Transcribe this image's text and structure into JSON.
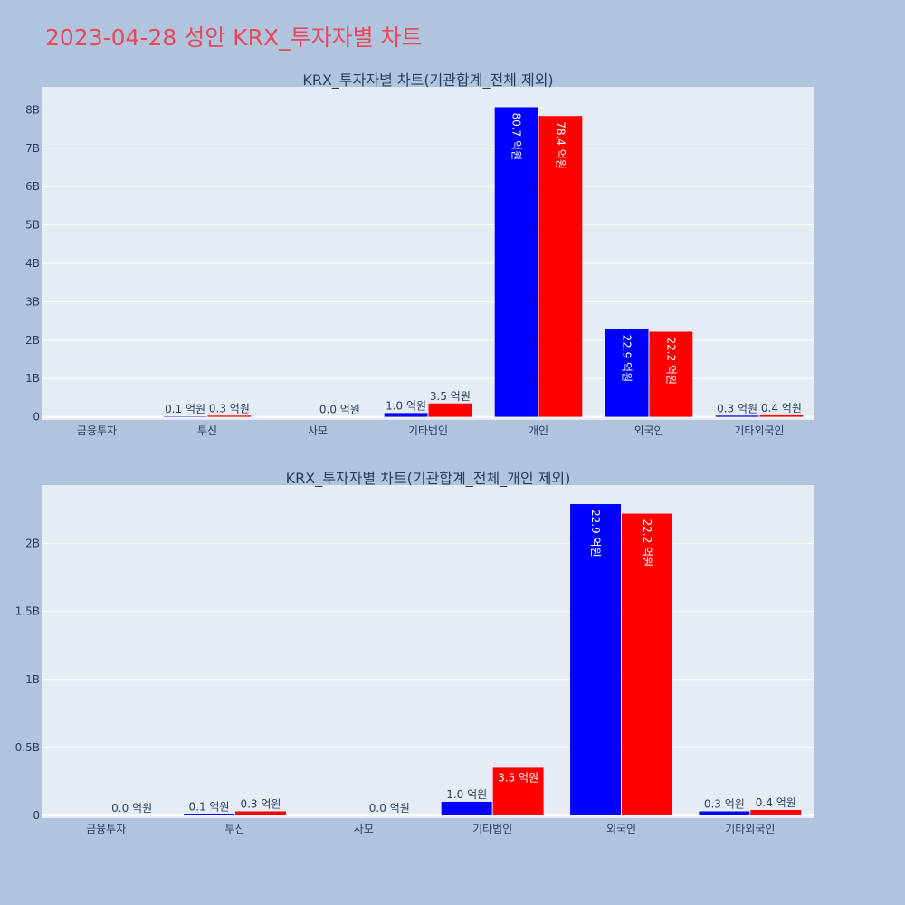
{
  "page_title": "2023-04-28 성안 KRX_투자자별 차트",
  "colors": {
    "background": "#b0c4de",
    "plot_bg": "#e5ecf6",
    "buy": "#0000ff",
    "sell": "#ff0000",
    "title": "#e8485c"
  },
  "chart_data": [
    {
      "type": "bar",
      "title": "KRX_투자자별 차트(기관합계_전체 제외)",
      "categories": [
        "금융투자",
        "투신",
        "사모",
        "기타법인",
        "개인",
        "외국인",
        "기타외국인"
      ],
      "series": [
        {
          "values": [
            null,
            0.01,
            null,
            0.1,
            8.07,
            2.29,
            0.03
          ],
          "labels": [
            "",
            "0.1 억원",
            "",
            "1.0 억원",
            "80.7 억원",
            "22.9 억원",
            "0.3 억원"
          ]
        },
        {
          "values": [
            null,
            0.03,
            0.0,
            0.35,
            7.84,
            2.22,
            0.04
          ],
          "labels": [
            "",
            "0.3 억원",
            "0.0 억원",
            "3.5 억원",
            "78.4 억원",
            "22.2 억원",
            "0.4 억원"
          ]
        }
      ],
      "ylim": [
        -0.08,
        8.6
      ],
      "yticks": [
        0,
        1,
        2,
        3,
        4,
        5,
        6,
        7,
        8
      ],
      "yticklabels": [
        "0",
        "1B",
        "2B",
        "3B",
        "4B",
        "5B",
        "6B",
        "7B",
        "8B"
      ],
      "grid": true
    },
    {
      "type": "bar",
      "title": "KRX_투자자별 차트(기관합계_전체_개인 제외)",
      "categories": [
        "금융투자",
        "투신",
        "사모",
        "기타법인",
        "외국인",
        "기타외국인"
      ],
      "series": [
        {
          "values": [
            null,
            0.01,
            null,
            0.1,
            2.29,
            0.03
          ],
          "labels": [
            "",
            "0.1 억원",
            "",
            "1.0 억원",
            "22.9 억원",
            "0.3 억원"
          ]
        },
        {
          "values": [
            0.0,
            0.03,
            0.0,
            0.35,
            2.22,
            0.04
          ],
          "labels": [
            "0.0 억원",
            "0.3 억원",
            "0.0 억원",
            "3.5 억원",
            "22.2 억원",
            "0.4 억원"
          ]
        }
      ],
      "ylim": [
        -0.02,
        2.43
      ],
      "yticks": [
        0,
        0.5,
        1,
        1.5,
        2
      ],
      "yticklabels": [
        "0",
        "0.5B",
        "1B",
        "1.5B",
        "2B"
      ],
      "grid": true
    }
  ]
}
